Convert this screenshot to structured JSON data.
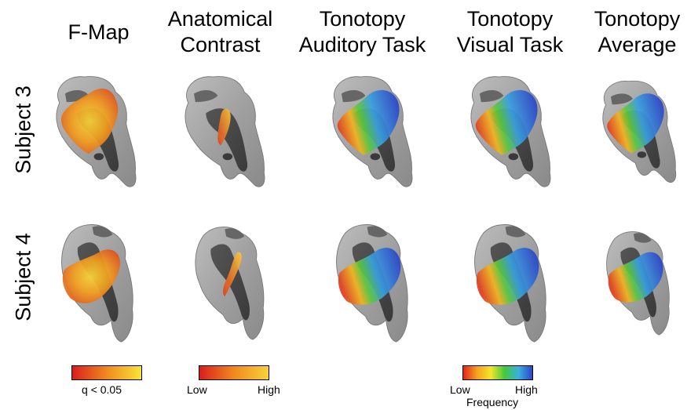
{
  "columns": [
    {
      "line1": "F-Map",
      "line2": ""
    },
    {
      "line1": "Anatomical",
      "line2": "Contrast"
    },
    {
      "line1": "Tonotopy",
      "line2": "Auditory Task"
    },
    {
      "line1": "Tonotopy",
      "line2": "Visual Task"
    },
    {
      "line1": "Tonotopy",
      "line2": "Average"
    }
  ],
  "rows": [
    {
      "label": "Subject 3"
    },
    {
      "label": "Subject 4"
    }
  ],
  "colorbars": {
    "fmap": {
      "label": "q < 0.05",
      "colors": [
        "#d81e1e",
        "#f08a1e",
        "#f8e43a"
      ]
    },
    "anatomical": {
      "low": "Low",
      "high": "High",
      "colors": [
        "#d81e1e",
        "#f08a1e",
        "#f8d23a"
      ]
    },
    "tonotopy": {
      "low": "Low",
      "high": "High",
      "title": "Frequency",
      "colors": [
        "#e0241e",
        "#f5a21e",
        "#f2e62a",
        "#42c840",
        "#3bb0e0",
        "#2a46c8"
      ]
    }
  },
  "colors": {
    "cortex_light": "#a8a8a8",
    "cortex_dark": "#4a4a4a",
    "fmap_hot": "#f2a51e",
    "high_freq": "#2a52d8",
    "low_freq": "#e0341e"
  }
}
